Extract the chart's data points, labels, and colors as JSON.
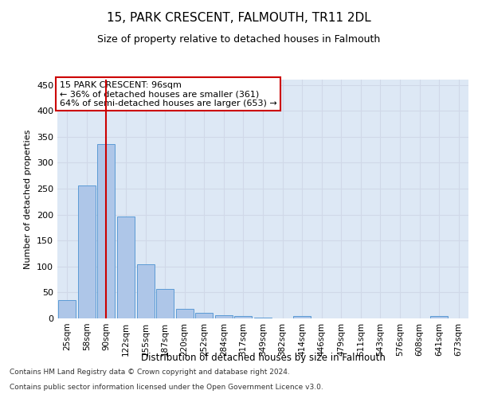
{
  "title1": "15, PARK CRESCENT, FALMOUTH, TR11 2DL",
  "title2": "Size of property relative to detached houses in Falmouth",
  "xlabel": "Distribution of detached houses by size in Falmouth",
  "ylabel": "Number of detached properties",
  "categories": [
    "25sqm",
    "58sqm",
    "90sqm",
    "122sqm",
    "155sqm",
    "187sqm",
    "220sqm",
    "252sqm",
    "284sqm",
    "317sqm",
    "349sqm",
    "382sqm",
    "414sqm",
    "446sqm",
    "479sqm",
    "511sqm",
    "543sqm",
    "576sqm",
    "608sqm",
    "641sqm",
    "673sqm"
  ],
  "values": [
    35,
    256,
    336,
    197,
    104,
    57,
    19,
    10,
    6,
    4,
    1,
    0,
    5,
    0,
    0,
    0,
    0,
    0,
    0,
    4,
    0
  ],
  "bar_color": "#aec6e8",
  "bar_edge_color": "#5b9bd5",
  "grid_color": "#d0d8e8",
  "background_color": "#dde8f5",
  "vline_x": 2,
  "vline_color": "#cc0000",
  "annotation_text": "15 PARK CRESCENT: 96sqm\n← 36% of detached houses are smaller (361)\n64% of semi-detached houses are larger (653) →",
  "annotation_box_color": "#ffffff",
  "annotation_box_edge": "#cc0000",
  "ylim": [
    0,
    460
  ],
  "yticks": [
    0,
    50,
    100,
    150,
    200,
    250,
    300,
    350,
    400,
    450
  ],
  "footnote1": "Contains HM Land Registry data © Crown copyright and database right 2024.",
  "footnote2": "Contains public sector information licensed under the Open Government Licence v3.0."
}
